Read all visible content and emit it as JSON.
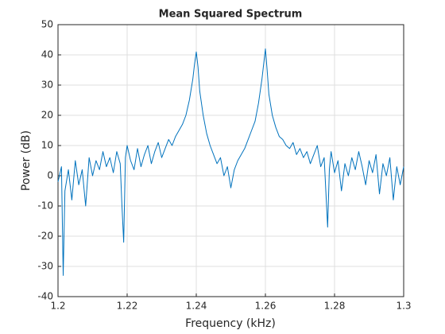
{
  "chart_data": {
    "type": "line",
    "title": "Mean Squared Spectrum",
    "x_label": "Frequency (kHz)",
    "y_label": "Power (dB)",
    "x": [
      1.2,
      1.201,
      1.2015,
      1.202,
      1.203,
      1.204,
      1.205,
      1.206,
      1.207,
      1.208,
      1.209,
      1.21,
      1.211,
      1.212,
      1.213,
      1.214,
      1.215,
      1.216,
      1.217,
      1.218,
      1.2185,
      1.219,
      1.2195,
      1.22,
      1.221,
      1.222,
      1.223,
      1.224,
      1.225,
      1.226,
      1.227,
      1.228,
      1.229,
      1.23,
      1.231,
      1.232,
      1.233,
      1.234,
      1.235,
      1.236,
      1.237,
      1.238,
      1.239,
      1.2395,
      1.24,
      1.2405,
      1.241,
      1.242,
      1.243,
      1.244,
      1.245,
      1.246,
      1.247,
      1.248,
      1.249,
      1.25,
      1.251,
      1.252,
      1.253,
      1.254,
      1.255,
      1.256,
      1.257,
      1.258,
      1.259,
      1.2595,
      1.26,
      1.2605,
      1.261,
      1.262,
      1.263,
      1.264,
      1.265,
      1.266,
      1.267,
      1.268,
      1.269,
      1.27,
      1.271,
      1.272,
      1.273,
      1.274,
      1.275,
      1.276,
      1.277,
      1.278,
      1.2785,
      1.279,
      1.28,
      1.281,
      1.282,
      1.283,
      1.284,
      1.285,
      1.286,
      1.287,
      1.288,
      1.289,
      1.29,
      1.291,
      1.292,
      1.293,
      1.294,
      1.295,
      1.296,
      1.297,
      1.298,
      1.299,
      1.3
    ],
    "series": [
      {
        "color": "#0072bd",
        "values": [
          -2,
          3,
          -33,
          -5,
          2,
          -8,
          5,
          -3,
          2,
          -10,
          6,
          0,
          5,
          2,
          8,
          3,
          6,
          1,
          8,
          4,
          -10,
          -22,
          6,
          10,
          5,
          2,
          9,
          3,
          7,
          10,
          4,
          8,
          11,
          6,
          9,
          12,
          10,
          13,
          15,
          17,
          20,
          25,
          32,
          37,
          41,
          36,
          28,
          20,
          14,
          10,
          7,
          4,
          6,
          0,
          3,
          -4,
          2,
          5,
          7,
          9,
          12,
          15,
          18,
          24,
          32,
          37,
          42,
          35,
          27,
          20,
          16,
          13,
          12,
          10,
          9,
          11,
          7,
          9,
          6,
          8,
          4,
          7,
          10,
          3,
          6,
          -17,
          2,
          8,
          1,
          5,
          -5,
          4,
          0,
          6,
          2,
          8,
          3,
          -3,
          5,
          1,
          7,
          -6,
          4,
          0,
          6,
          -8,
          3,
          -3,
          3
        ]
      }
    ],
    "xlim": [
      1.2,
      1.3
    ],
    "xticks": [
      1.2,
      1.22,
      1.24,
      1.26,
      1.28,
      1.3
    ],
    "ylim": [
      -40,
      50
    ],
    "yticks": [
      -40,
      -30,
      -20,
      -10,
      0,
      10,
      20,
      30,
      40,
      50
    ],
    "grid": true
  }
}
